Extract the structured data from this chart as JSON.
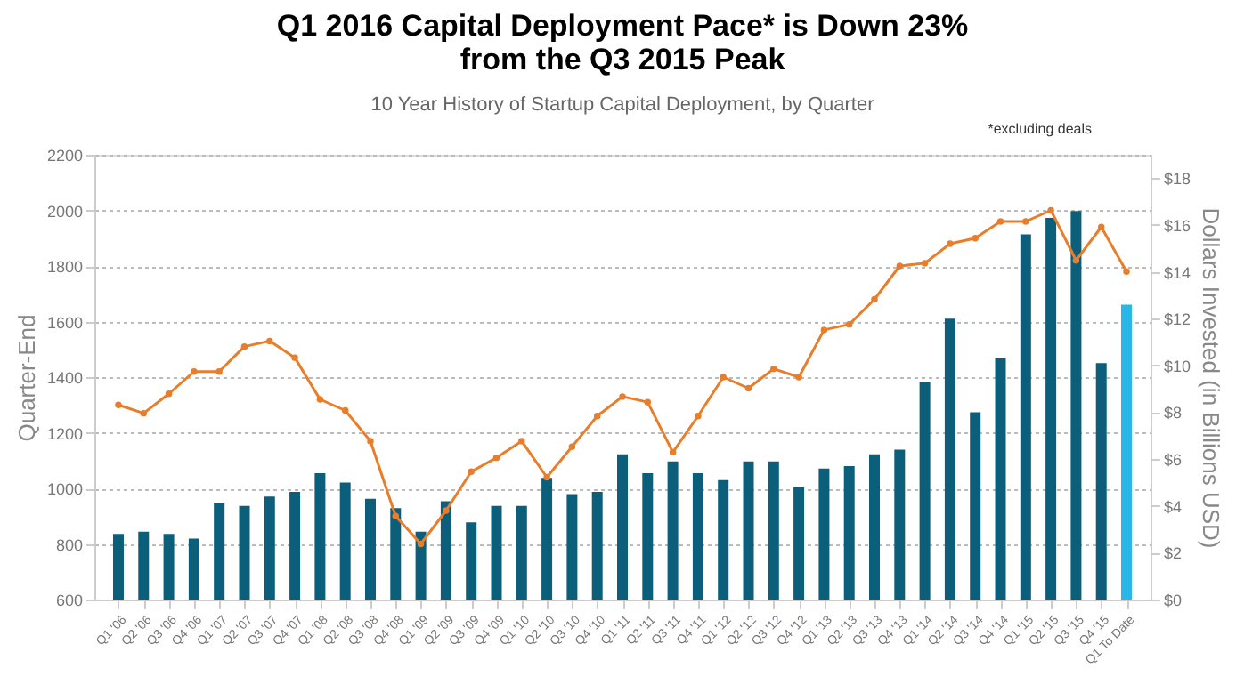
{
  "chart_data": {
    "type": "bar",
    "title": "Q1 2016 Capital Deployment Pace* is Down 23%\nfrom the Q3 2015 Peak",
    "subtitle": "10 Year History of Startup Capital Deployment, by Quarter",
    "ylabel": "Quarter-End",
    "y2label": "Dollars Invested (in Billions USD)",
    "annotations": [
      "*excluding deals"
    ],
    "categories": [
      "Q1 '06",
      "Q2 '06",
      "Q3 '06",
      "Q4 '06",
      "Q1 '07",
      "Q2 '07",
      "Q3 '07",
      "Q4 '07",
      "Q1 '08",
      "Q2 '08",
      "Q3 '08",
      "Q4 '08",
      "Q1 '09",
      "Q2 '09",
      "Q3 '09",
      "Q4 '09",
      "Q1 '10",
      "Q2 '10",
      "Q3 '10",
      "Q4 '10",
      "Q1 '11",
      "Q2 '11",
      "Q3 '11",
      "Q4 '11",
      "Q1 '12",
      "Q2 '12",
      "Q3 '12",
      "Q4 '12",
      "Q1 '13",
      "Q2 '13",
      "Q3 '13",
      "Q4 '13",
      "Q1 '14",
      "Q2 '14",
      "Q3 '14",
      "Q4 '14",
      "Q1 '15",
      "Q2 '15",
      "Q3 '15",
      "Q4 '15",
      "Q1 To Date"
    ],
    "series": [
      {
        "axis": "y2",
        "colors": [
          "#0b5f7a",
          "#0b5f7a",
          "#0b5f7a",
          "#0b5f7a",
          "#0b5f7a",
          "#0b5f7a",
          "#0b5f7a",
          "#0b5f7a",
          "#0b5f7a",
          "#0b5f7a",
          "#0b5f7a",
          "#0b5f7a",
          "#0b5f7a",
          "#0b5f7a",
          "#0b5f7a",
          "#0b5f7a",
          "#0b5f7a",
          "#0b5f7a",
          "#0b5f7a",
          "#0b5f7a",
          "#0b5f7a",
          "#0b5f7a",
          "#0b5f7a",
          "#0b5f7a",
          "#0b5f7a",
          "#0b5f7a",
          "#0b5f7a",
          "#0b5f7a",
          "#0b5f7a",
          "#0b5f7a",
          "#0b5f7a",
          "#0b5f7a",
          "#0b5f7a",
          "#0b5f7a",
          "#0b5f7a",
          "#0b5f7a",
          "#0b5f7a",
          "#0b5f7a",
          "#0b5f7a",
          "#0b5f7a",
          "#29b6e8"
        ],
        "values": [
          2.8,
          2.9,
          2.8,
          2.6,
          4.1,
          4.0,
          4.4,
          4.6,
          5.4,
          5.0,
          4.3,
          3.9,
          2.9,
          4.2,
          3.3,
          4.0,
          4.0,
          5.2,
          4.5,
          4.6,
          6.2,
          5.4,
          5.9,
          5.4,
          5.1,
          5.9,
          5.9,
          4.8,
          5.6,
          5.7,
          6.2,
          6.4,
          9.3,
          12.0,
          8.0,
          10.3,
          15.6,
          16.3,
          16.6,
          10.1,
          12.6
        ]
      },
      {
        "type": "line",
        "color": "#e87e2b",
        "values": [
          1300,
          1270,
          1340,
          1420,
          1420,
          1510,
          1530,
          1470,
          1320,
          1280,
          1170,
          900,
          800,
          920,
          1060,
          1110,
          1170,
          1040,
          1150,
          1260,
          1330,
          1310,
          1130,
          1260,
          1400,
          1360,
          1430,
          1400,
          1570,
          1590,
          1680,
          1800,
          1810,
          1880,
          1900,
          1960,
          1960,
          2000,
          1820,
          1940,
          1780
        ]
      }
    ],
    "ylim": [
      600,
      2200
    ],
    "yticks": [
      600,
      800,
      1000,
      1200,
      1400,
      1600,
      1800,
      2000,
      2200
    ],
    "y2lim": [
      0,
      19
    ],
    "y2ticks": [
      {
        "value": 0,
        "label": "$0"
      },
      {
        "value": 2,
        "label": "$2"
      },
      {
        "value": 4,
        "label": "$4"
      },
      {
        "value": 6,
        "label": "$6"
      },
      {
        "value": 8,
        "label": "$8"
      },
      {
        "value": 10,
        "label": "$10"
      },
      {
        "value": 12,
        "label": "$12"
      },
      {
        "value": 14,
        "label": "$14"
      },
      {
        "value": 16,
        "label": "$16"
      },
      {
        "value": 18,
        "label": "$18"
      }
    ],
    "grid": "y",
    "marker": "circle",
    "line_style": "solid"
  }
}
